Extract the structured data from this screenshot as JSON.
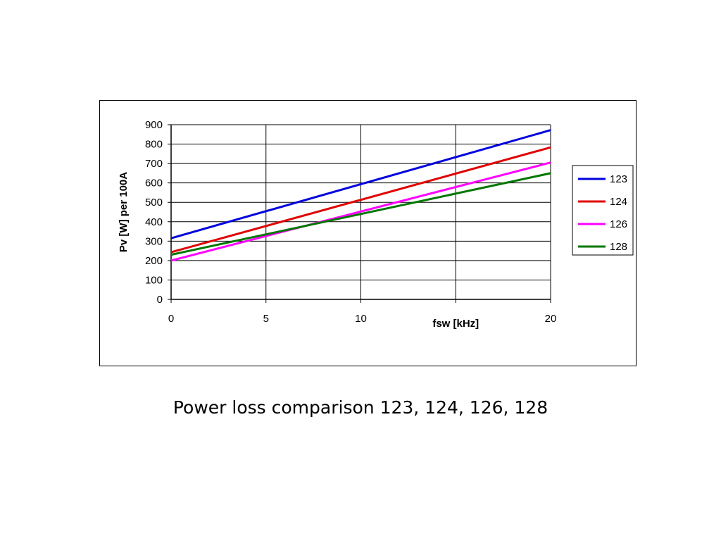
{
  "chart_data": {
    "type": "line",
    "xlabel": "fsw [kHz]",
    "ylabel": "Pv [W] per 100A",
    "xlim": [
      0,
      20
    ],
    "ylim": [
      0,
      900
    ],
    "xticks": [
      0,
      5,
      10,
      20
    ],
    "yticks": [
      0,
      100,
      200,
      300,
      400,
      500,
      600,
      700,
      800,
      900
    ],
    "xgrid": [
      0,
      5,
      10,
      15,
      20
    ],
    "grid": true,
    "legend_position": "right",
    "series": [
      {
        "name": "123",
        "color": "#0000dd",
        "x": [
          0,
          20
        ],
        "y": [
          315,
          872
        ]
      },
      {
        "name": "124",
        "color": "#e00000",
        "x": [
          0,
          20
        ],
        "y": [
          243,
          783
        ]
      },
      {
        "name": "126",
        "color": "#ff00ff",
        "x": [
          0,
          20
        ],
        "y": [
          200,
          705
        ]
      },
      {
        "name": "128",
        "color": "#007700",
        "x": [
          0,
          20
        ],
        "y": [
          230,
          650
        ]
      }
    ]
  },
  "caption": "Power loss comparison 123, 124, 126, 128"
}
